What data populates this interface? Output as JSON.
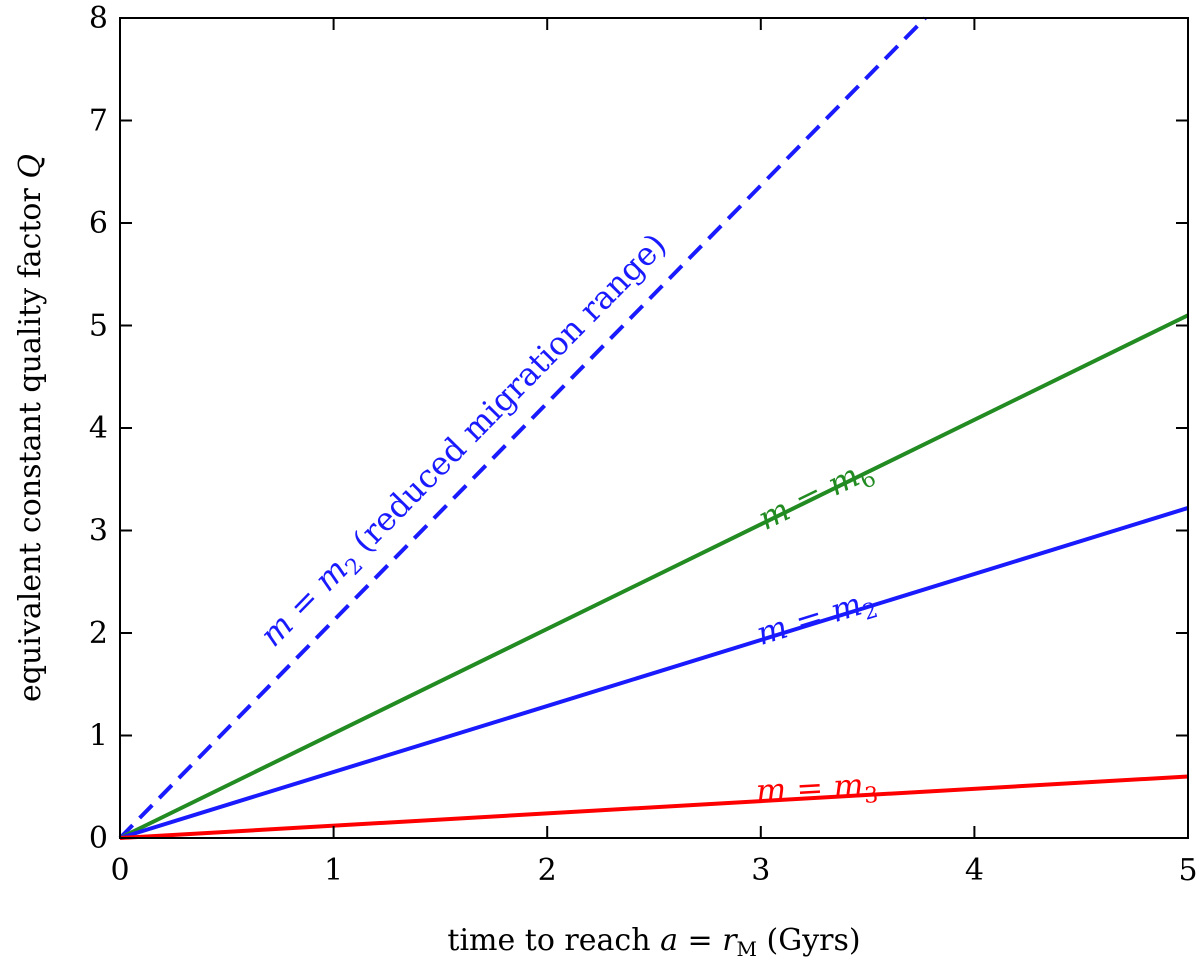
{
  "chart_data": {
    "type": "line",
    "title": "",
    "xlabel": "time to reach a = r_M (Gyrs)",
    "xlabel_parts": {
      "pre": "time to reach ",
      "var": "a",
      "eq": " = ",
      "var2": "r",
      "sub": "M",
      "post": " (Gyrs)"
    },
    "ylabel": "equivalent constant quality factor Q",
    "ylabel_parts": {
      "pre": "equivalent constant quality factor ",
      "var": "Q"
    },
    "xlim": [
      0,
      5
    ],
    "ylim": [
      0,
      8
    ],
    "xticks": [
      "0",
      "1",
      "2",
      "3",
      "4",
      "5"
    ],
    "yticks": [
      "0",
      "1",
      "2",
      "3",
      "4",
      "5",
      "6",
      "7",
      "8"
    ],
    "grid": false,
    "series": [
      {
        "name": "m = m2 (reduced migration range)",
        "label_main": "m = m",
        "label_sub": "2",
        "label_post": " (reduced migration range)",
        "color": "#1a1aff",
        "dashed": true,
        "x": [
          0,
          3.77
        ],
        "y": [
          0,
          8
        ]
      },
      {
        "name": "m = m6",
        "label_main": "m = m",
        "label_sub": "6",
        "label_post": "",
        "color": "#228b22",
        "dashed": false,
        "x": [
          0,
          5
        ],
        "y": [
          0,
          5.1
        ]
      },
      {
        "name": "m = m2",
        "label_main": "m = m",
        "label_sub": "2",
        "label_post": "",
        "color": "#1a1aff",
        "dashed": false,
        "x": [
          0,
          5
        ],
        "y": [
          0,
          3.22
        ]
      },
      {
        "name": "m = m3",
        "label_main": "m = m",
        "label_sub": "3",
        "label_post": "",
        "color": "#ff0000",
        "dashed": false,
        "x": [
          0,
          5
        ],
        "y": [
          0,
          0.6
        ]
      }
    ]
  }
}
